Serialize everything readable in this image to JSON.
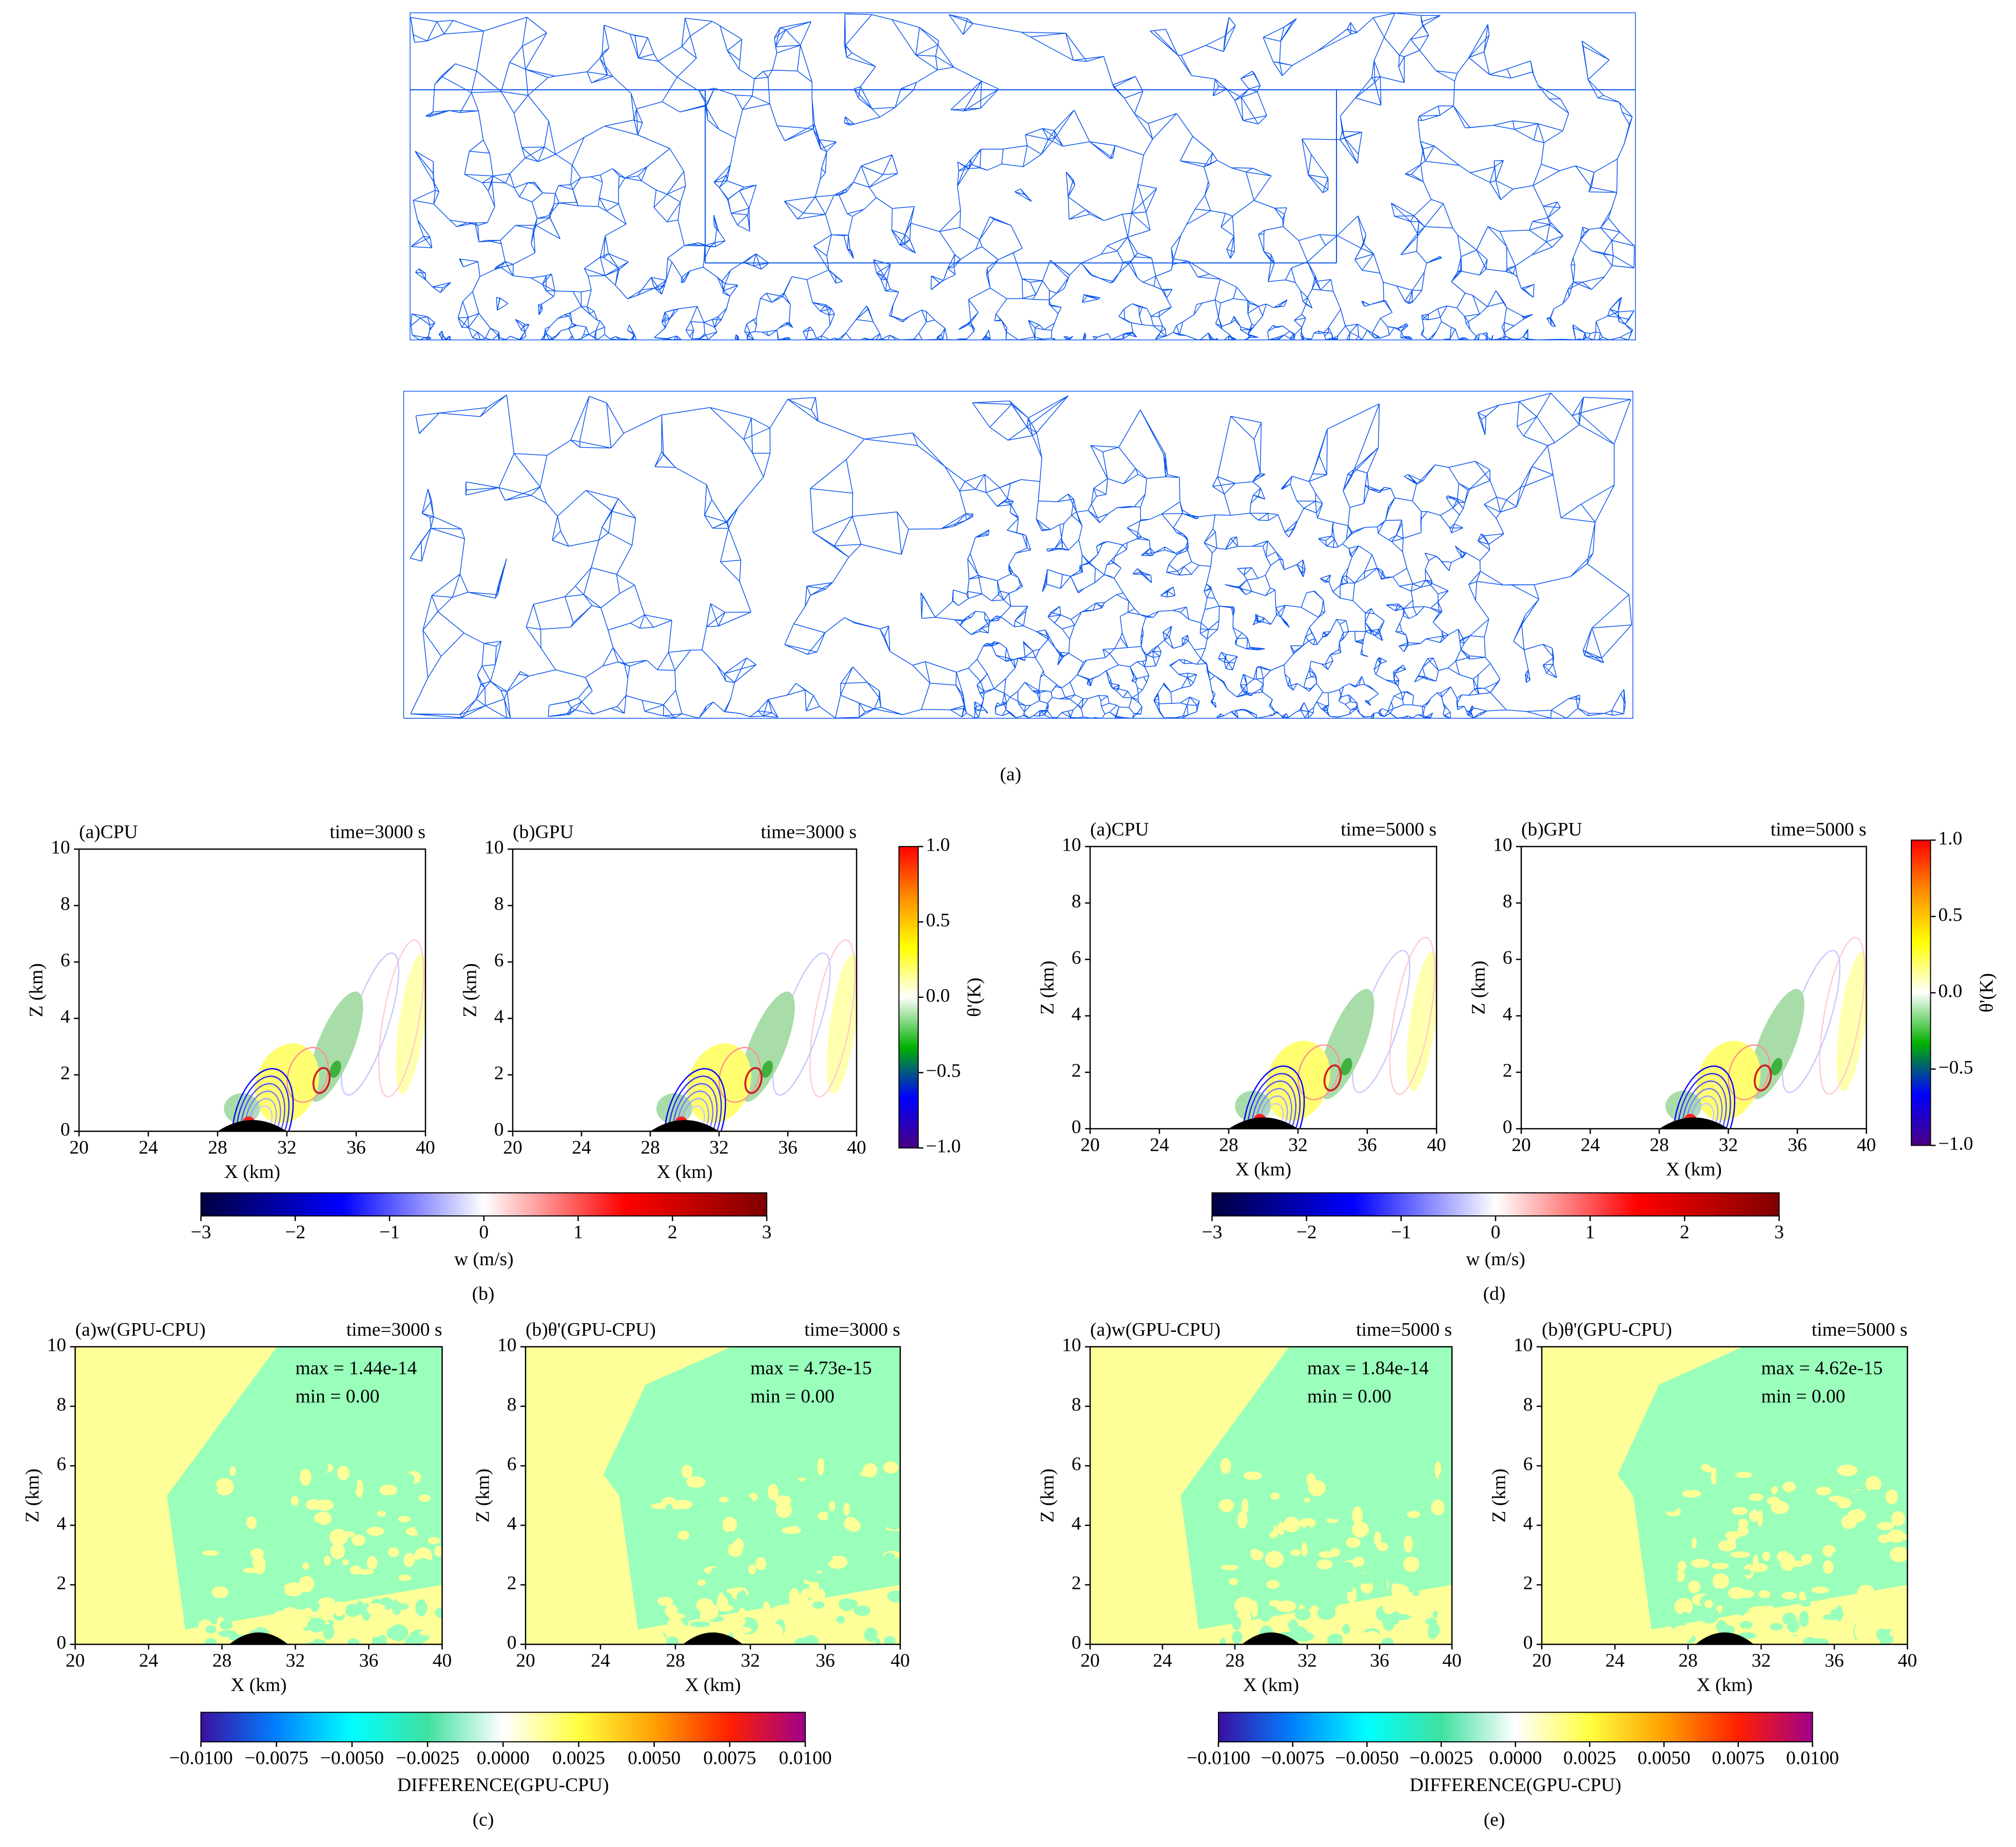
{
  "captions": [
    "(a)",
    "(b)",
    "(c)",
    "(d)",
    "(e)"
  ],
  "chart_data": [
    {
      "type": "contour",
      "title_left": "(a)CPU",
      "title_right": "time=3000 s",
      "xlabel": "X (km)",
      "ylabel": "Z (km)",
      "xlim": [
        20,
        40
      ],
      "ylim": [
        0,
        10
      ],
      "xticks": [
        20,
        24,
        28,
        32,
        36,
        40
      ],
      "yticks": [
        0,
        2,
        4,
        6,
        8,
        10
      ]
    },
    {
      "type": "contour",
      "title_left": "(b)GPU",
      "title_right": "time=3000 s",
      "xlabel": "X (km)",
      "ylabel": "Z (km)",
      "xlim": [
        20,
        40
      ],
      "ylim": [
        0,
        10
      ],
      "xticks": [
        20,
        24,
        28,
        32,
        36,
        40
      ],
      "yticks": [
        0,
        2,
        4,
        6,
        8,
        10
      ]
    },
    {
      "type": "contour",
      "title_left": "(a)CPU",
      "title_right": "time=5000 s",
      "xlabel": "X (km)",
      "ylabel": "Z (km)",
      "xlim": [
        20,
        40
      ],
      "ylim": [
        0,
        10
      ],
      "xticks": [
        20,
        24,
        28,
        32,
        36,
        40
      ],
      "yticks": [
        0,
        2,
        4,
        6,
        8,
        10
      ]
    },
    {
      "type": "contour",
      "title_left": "(b)GPU",
      "title_right": "time=5000 s",
      "xlabel": "X (km)",
      "ylabel": "Z (km)",
      "xlim": [
        20,
        40
      ],
      "ylim": [
        0,
        10
      ],
      "xticks": [
        20,
        24,
        28,
        32,
        36,
        40
      ],
      "yticks": [
        0,
        2,
        4,
        6,
        8,
        10
      ]
    },
    {
      "type": "difference",
      "title_left": "(a)w(GPU-CPU)",
      "title_right": "time=3000 s",
      "annotations": [
        "max = 1.44e-14",
        "min = 0.00"
      ],
      "colors": [
        "#ffff99",
        "#99ffbb"
      ],
      "xlabel": "X (km)",
      "ylabel": "Z (km)",
      "xlim": [
        20,
        40
      ],
      "ylim": [
        0,
        10
      ],
      "xticks": [
        20,
        24,
        28,
        32,
        36,
        40
      ],
      "yticks": [
        0,
        2,
        4,
        6,
        8,
        10
      ]
    },
    {
      "type": "difference",
      "title_left": "(b)θ'(GPU-CPU)",
      "title_right": "time=3000 s",
      "annotations": [
        "max = 4.73e-15",
        "min = 0.00"
      ],
      "colors": [
        "#ffff99",
        "#99ffbb"
      ],
      "xlabel": "X (km)",
      "ylabel": "Z (km)",
      "xlim": [
        20,
        40
      ],
      "ylim": [
        0,
        10
      ],
      "xticks": [
        20,
        24,
        28,
        32,
        36,
        40
      ],
      "yticks": [
        0,
        2,
        4,
        6,
        8,
        10
      ]
    },
    {
      "type": "difference",
      "title_left": "(a)w(GPU-CPU)",
      "title_right": "time=5000 s",
      "annotations": [
        "max = 1.84e-14",
        "min = 0.00"
      ],
      "colors": [
        "#ffff99",
        "#99ffbb"
      ],
      "xlabel": "X (km)",
      "ylabel": "Z (km)",
      "xlim": [
        20,
        40
      ],
      "ylim": [
        0,
        10
      ],
      "xticks": [
        20,
        24,
        28,
        32,
        36,
        40
      ],
      "yticks": [
        0,
        2,
        4,
        6,
        8,
        10
      ]
    },
    {
      "type": "difference",
      "title_left": "(b)θ'(GPU-CPU)",
      "title_right": "time=5000 s",
      "annotations": [
        "max = 4.62e-15",
        "min = 0.00"
      ],
      "colors": [
        "#ffff99",
        "#99ffbb"
      ],
      "xlabel": "X (km)",
      "ylabel": "Z (km)",
      "xlim": [
        20,
        40
      ],
      "ylim": [
        0,
        10
      ],
      "xticks": [
        20,
        24,
        28,
        32,
        36,
        40
      ],
      "yticks": [
        0,
        2,
        4,
        6,
        8,
        10
      ]
    },
    {
      "type": "colorbar",
      "orientation": "horizontal",
      "label": "w (m/s)",
      "lim": [
        -3,
        3
      ],
      "ticks": [
        {
          "value": -3,
          "label": "−3"
        },
        {
          "value": -2,
          "label": "−2"
        },
        {
          "value": -1,
          "label": "−1"
        },
        0,
        1,
        2,
        3
      ],
      "colors": [
        "#00003f",
        "#0000ff",
        "#ffffff",
        "#ff0000",
        "#7f0000"
      ]
    },
    {
      "type": "colorbar",
      "orientation": "vertical",
      "label": "θ'(K)",
      "lim": [
        -1,
        1
      ],
      "ticks": [
        {
          "value": -1,
          "label": "−1.0"
        },
        {
          "value": -0.5,
          "label": "−0.5"
        },
        {
          "value": 0,
          "label": "0.0"
        },
        0.5,
        {
          "value": 1,
          "label": "1.0"
        }
      ],
      "colors": [
        "#4b0082",
        "#0000ff",
        "#00b000",
        "#ffffff",
        "#ffff00",
        "#ff8c00",
        "#ff0000"
      ]
    },
    {
      "type": "colorbar",
      "orientation": "horizontal",
      "label": "w (m/s)",
      "lim": [
        -3,
        3
      ],
      "ticks": [
        {
          "value": -3,
          "label": "−3"
        },
        {
          "value": -2,
          "label": "−2"
        },
        {
          "value": -1,
          "label": "−1"
        },
        0,
        1,
        2,
        3
      ],
      "colors": [
        "#00003f",
        "#0000ff",
        "#ffffff",
        "#ff0000",
        "#7f0000"
      ]
    },
    {
      "type": "colorbar",
      "orientation": "vertical",
      "label": "θ'(K)",
      "lim": [
        -1,
        1
      ],
      "ticks": [
        {
          "value": -1,
          "label": "−1.0"
        },
        {
          "value": -0.5,
          "label": "−0.5"
        },
        {
          "value": 0,
          "label": "0.0"
        },
        0.5,
        {
          "value": 1,
          "label": "1.0"
        }
      ],
      "colors": [
        "#4b0082",
        "#0000ff",
        "#00b000",
        "#ffffff",
        "#ffff00",
        "#ff8c00",
        "#ff0000"
      ]
    },
    {
      "type": "colorbar",
      "orientation": "horizontal",
      "label": "DIFFERENCE(GPU-CPU)",
      "lim": [
        -0.01,
        0.01
      ],
      "ticks": [
        {
          "value": -0.01,
          "label": "−0.0100"
        },
        {
          "value": -0.0075,
          "label": "−0.0075"
        },
        {
          "value": -0.005,
          "label": "−0.0050"
        },
        {
          "value": -0.0025,
          "label": "−0.0025"
        },
        {
          "value": 0,
          "label": "0.0000"
        },
        {
          "value": 0.0025,
          "label": "0.0025"
        },
        {
          "value": 0.005,
          "label": "0.0050"
        },
        0.0075,
        {
          "value": 0.01,
          "label": "0.0100"
        }
      ],
      "colors": [
        "#3b0fa0",
        "#0080ff",
        "#00ffff",
        "#40e0a0",
        "#ffffff",
        "#ffff40",
        "#ffa000",
        "#ff2000",
        "#a0008a"
      ]
    },
    {
      "type": "colorbar",
      "orientation": "horizontal",
      "label": "DIFFERENCE(GPU-CPU)",
      "lim": [
        -0.01,
        0.01
      ],
      "ticks": [
        {
          "value": -0.01,
          "label": "−0.0100"
        },
        {
          "value": -0.0075,
          "label": "−0.0075"
        },
        {
          "value": -0.005,
          "label": "−0.0050"
        },
        {
          "value": -0.0025,
          "label": "−0.0025"
        },
        {
          "value": 0,
          "label": "0.0000"
        },
        {
          "value": 0.0025,
          "label": "0.0025"
        },
        {
          "value": 0.005,
          "label": "0.0050"
        },
        0.0075,
        {
          "value": 0.01,
          "label": "0.0100"
        }
      ],
      "colors": [
        "#3b0fa0",
        "#0080ff",
        "#00ffff",
        "#40e0a0",
        "#ffffff",
        "#ffff40",
        "#ffa000",
        "#ff2000",
        "#a0008a"
      ]
    }
  ]
}
